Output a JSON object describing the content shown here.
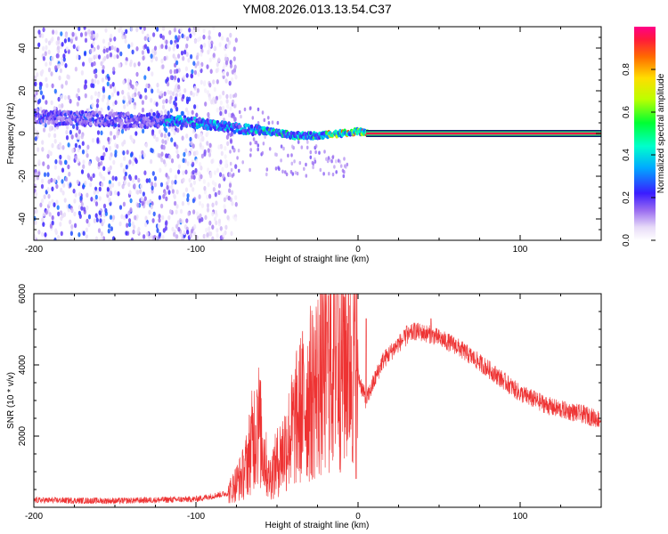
{
  "chart_data": [
    {
      "type": "heatmap",
      "title": "YM08.2026.013.13.54.C37",
      "xlabel": "Height of straight line (km)",
      "ylabel": "Frequency (Hz)",
      "xlim": [
        -200,
        150
      ],
      "ylim": [
        -50,
        50
      ],
      "x_ticks": [
        "-200",
        "-100",
        "0",
        "100"
      ],
      "y_ticks": [
        "-40",
        "-20",
        "0",
        "20",
        "40"
      ],
      "colorbar": {
        "label": "Normalized spectral amplitude",
        "range": [
          0,
          1
        ],
        "ticks": [
          "0.0",
          "0.2",
          "0.4",
          "0.6",
          "0.8"
        ]
      },
      "features": {
        "noise_region_x": [
          -200,
          -80
        ],
        "ridge": [
          {
            "x": -200,
            "f": 8
          },
          {
            "x": -170,
            "f": 7
          },
          {
            "x": -130,
            "f": 6
          },
          {
            "x": -110,
            "f": 6
          },
          {
            "x": -90,
            "f": 4
          },
          {
            "x": -70,
            "f": 2
          },
          {
            "x": -55,
            "f": 1
          },
          {
            "x": -40,
            "f": -1
          },
          {
            "x": -25,
            "f": -1
          },
          {
            "x": -10,
            "f": 0
          },
          {
            "x": 0,
            "f": 1
          },
          {
            "x": 5,
            "f": 0
          }
        ],
        "constant_line": {
          "x_start": 5,
          "x_end": 150,
          "f": 0,
          "amplitude": 1.0
        }
      }
    },
    {
      "type": "line",
      "title": "",
      "xlabel": "Height of straight line (km)",
      "ylabel": "SNR (10 * v/v)",
      "xlim": [
        -200,
        150
      ],
      "ylim": [
        0,
        6000
      ],
      "x_ticks": [
        "-200",
        "-100",
        "0",
        "100"
      ],
      "y_ticks": [
        "2000",
        "4000",
        "6000"
      ],
      "color": "#ee3333",
      "envelope": [
        {
          "x": -200,
          "y": 200
        },
        {
          "x": -150,
          "y": 180
        },
        {
          "x": -100,
          "y": 230
        },
        {
          "x": -80,
          "y": 400
        },
        {
          "x": -70,
          "y": 1000
        },
        {
          "x": -62,
          "y": 2500
        },
        {
          "x": -55,
          "y": 800
        },
        {
          "x": -45,
          "y": 1700
        },
        {
          "x": -35,
          "y": 2800
        },
        {
          "x": -25,
          "y": 3500
        },
        {
          "x": -15,
          "y": 4300
        },
        {
          "x": -5,
          "y": 4400
        },
        {
          "x": 5,
          "y": 3000
        },
        {
          "x": 15,
          "y": 4100
        },
        {
          "x": 25,
          "y": 4600
        },
        {
          "x": 35,
          "y": 4950
        },
        {
          "x": 45,
          "y": 4850
        },
        {
          "x": 60,
          "y": 4550
        },
        {
          "x": 80,
          "y": 3900
        },
        {
          "x": 100,
          "y": 3200
        },
        {
          "x": 120,
          "y": 2800
        },
        {
          "x": 140,
          "y": 2600
        },
        {
          "x": 150,
          "y": 2450
        }
      ],
      "spikes": [
        {
          "x": -62,
          "y": 3100
        },
        {
          "x": -19,
          "y": 5200
        },
        {
          "x": -13,
          "y": 6000
        },
        {
          "x": 5,
          "y": 5300
        },
        {
          "x": 30,
          "y": 5100
        },
        {
          "x": 45,
          "y": 5300
        }
      ]
    }
  ]
}
